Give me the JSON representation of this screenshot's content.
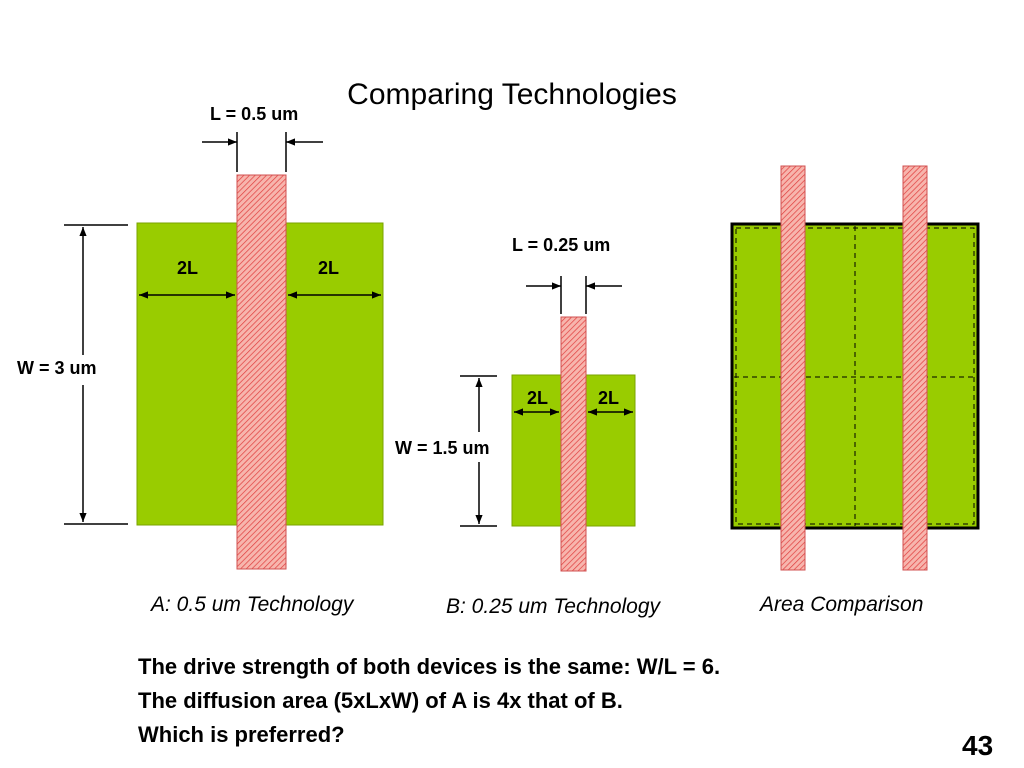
{
  "slide": {
    "title": "Comparing Technologies",
    "page_number": "43"
  },
  "device_a": {
    "gate_length_label": "L = 0.5 um",
    "width_label": "W = 3 um",
    "left_spacing_label": "2L",
    "right_spacing_label": "2L",
    "caption": "A: 0.5 um Technology"
  },
  "device_b": {
    "gate_length_label": "L = 0.25 um",
    "width_label": "W = 1.5 um",
    "left_spacing_label": "2L",
    "right_spacing_label": "2L",
    "caption": "B: 0.25 um Technology"
  },
  "comparison": {
    "caption": "Area Comparison"
  },
  "notes": {
    "line1": "The drive strength of both devices is the same: W/L = 6.",
    "line2": "The diffusion area (5xLxW) of A is 4x that of B.",
    "line3": "Which is preferred?"
  },
  "colors": {
    "diffusion": "#99cc00",
    "gate_fill": "#f4a8a0",
    "gate_hatch": "#e04040"
  }
}
